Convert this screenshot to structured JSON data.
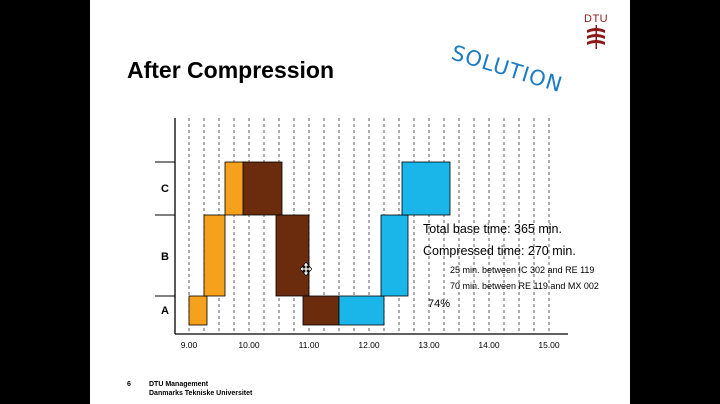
{
  "stamp": "SOLUTION",
  "logo": {
    "text": "DTU"
  },
  "title": "After Compression",
  "annotations": {
    "base_time": "Total base time: 365 min.",
    "compressed_time": "Compressed time: 270 min.",
    "note1": "25 min. between IC 302 and RE 119",
    "note2": "70 min. between RE 119 and MX 002",
    "percent": "74%"
  },
  "footer": {
    "page": "6",
    "line1": "DTU Management",
    "line2": "Danmarks Tekniske Universitet"
  },
  "colors": {
    "orange": "#f5a11b",
    "brown": "#6b2c0e",
    "cyan": "#1ab6ea"
  },
  "chart_data": {
    "type": "bar",
    "rows": [
      "A",
      "B",
      "C"
    ],
    "x_ticks": [
      "9.00",
      "10.00",
      "11.00",
      "12.00",
      "13.00",
      "14.00",
      "15.00"
    ],
    "xlim": [
      8.85,
      15.1
    ],
    "grid": "vertical dashed lines every 0.25 h",
    "blocks": [
      {
        "row": "A",
        "start": 9.0,
        "end": 9.3,
        "color": "orange"
      },
      {
        "row": "B",
        "start": 9.25,
        "end": 9.6,
        "color": "orange"
      },
      {
        "row": "C",
        "start": 9.6,
        "end": 9.95,
        "color": "orange"
      },
      {
        "row": "C",
        "start": 9.9,
        "end": 10.55,
        "color": "brown"
      },
      {
        "row": "B",
        "start": 10.45,
        "end": 11.0,
        "color": "brown"
      },
      {
        "row": "A",
        "start": 10.9,
        "end": 11.5,
        "color": "brown"
      },
      {
        "row": "A",
        "start": 11.5,
        "end": 12.25,
        "color": "cyan"
      },
      {
        "row": "B",
        "start": 12.2,
        "end": 12.65,
        "color": "cyan"
      },
      {
        "row": "C",
        "start": 12.55,
        "end": 13.35,
        "color": "cyan"
      }
    ]
  }
}
